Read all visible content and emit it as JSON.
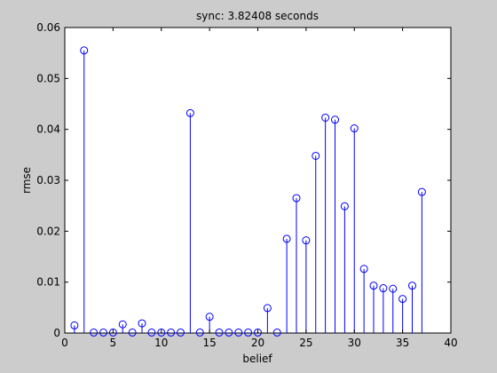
{
  "chart_data": {
    "type": "stem",
    "title": "sync: 3.82408 seconds",
    "xlabel": "belief",
    "ylabel": "rmse",
    "xlim": [
      0,
      40
    ],
    "ylim": [
      0,
      0.06
    ],
    "xticks": [
      "0",
      "5",
      "10",
      "15",
      "20",
      "25",
      "30",
      "35",
      "40"
    ],
    "yticks": [
      "0",
      "0.01",
      "0.02",
      "0.03",
      "0.04",
      "0.05",
      "0.06"
    ],
    "grid": false,
    "marker": "circle",
    "colors": {
      "stem": "#0000ff",
      "axes_bg": "#ffffff",
      "figure_bg": "#cccccc"
    },
    "x": [
      1,
      2,
      3,
      4,
      5,
      6,
      7,
      8,
      9,
      10,
      11,
      12,
      13,
      14,
      15,
      16,
      17,
      18,
      19,
      20,
      21,
      22,
      23,
      24,
      25,
      26,
      27,
      28,
      29,
      30,
      31,
      32,
      33,
      34,
      35,
      36,
      37
    ],
    "values": [
      0.0015,
      0.0555,
      0.0001,
      0.0001,
      0.0001,
      0.0017,
      0.0001,
      0.0019,
      0.0001,
      0.0001,
      0.0001,
      0.0001,
      0.0432,
      0.0001,
      0.0032,
      0.0001,
      0.0001,
      0.0001,
      0.0001,
      0.0001,
      0.0049,
      0.0001,
      0.0185,
      0.0265,
      0.0182,
      0.0348,
      0.0423,
      0.0419,
      0.0249,
      0.0402,
      0.0126,
      0.0093,
      0.0088,
      0.0087,
      0.0067,
      0.0093,
      0.0277
    ]
  }
}
